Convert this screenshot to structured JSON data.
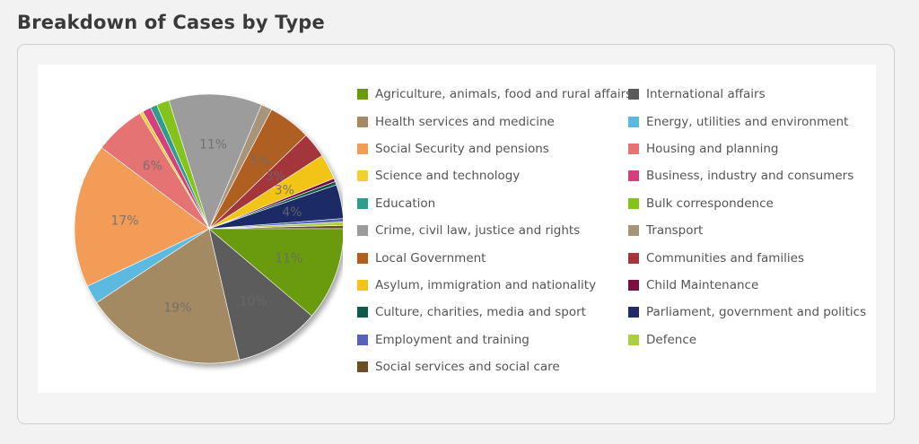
{
  "page": {
    "title": "Breakdown of Cases by Type"
  },
  "chart_data": {
    "type": "pie",
    "start_side": "right",
    "direction": "counterclockwise",
    "slices": [
      {
        "name": "Social services and social care",
        "value": 0.4,
        "color": "#6b4f24",
        "label": ""
      },
      {
        "name": "Defence",
        "value": 0.4,
        "color": "#a8d042",
        "label": ""
      },
      {
        "name": "Employment and training",
        "value": 0.4,
        "color": "#5862b8",
        "label": ""
      },
      {
        "name": "Parliament, government and politics",
        "value": 4,
        "color": "#1f2a66",
        "label": "4%"
      },
      {
        "name": "Culture, charities, media and sport",
        "value": 0.4,
        "color": "#0f5a4a",
        "label": ""
      },
      {
        "name": "Child Maintenance",
        "value": 0.4,
        "color": "#7a1040",
        "label": ""
      },
      {
        "name": "Asylum, immigration and nationality",
        "value": 3,
        "color": "#f2c418",
        "label": "3%"
      },
      {
        "name": "Communities and families",
        "value": 3,
        "color": "#a4363a",
        "label": "3%"
      },
      {
        "name": "Local Government",
        "value": 5,
        "color": "#b05f22",
        "label": "5%"
      },
      {
        "name": "Transport",
        "value": 1.3,
        "color": "#a8947a",
        "label": ""
      },
      {
        "name": "Crime, civil law, justice and rights",
        "value": 11,
        "color": "#9c9c9c",
        "label": "11%"
      },
      {
        "name": "Bulk correspondence",
        "value": 1.5,
        "color": "#86c21e",
        "label": ""
      },
      {
        "name": "Education",
        "value": 0.8,
        "color": "#2e9c8e",
        "label": ""
      },
      {
        "name": "Business, industry and consumers",
        "value": 1,
        "color": "#d53f7b",
        "label": ""
      },
      {
        "name": "Science and technology",
        "value": 0.4,
        "color": "#f1d030",
        "label": ""
      },
      {
        "name": "Housing and planning",
        "value": 6,
        "color": "#e57373",
        "label": "6%"
      },
      {
        "name": "Social Security and pensions",
        "value": 17,
        "color": "#f29c59",
        "label": "17%"
      },
      {
        "name": "Energy, utilities and environment",
        "value": 2.2,
        "color": "#5bb9e0",
        "label": ""
      },
      {
        "name": "Health services and medicine",
        "value": 19,
        "color": "#a48a62",
        "label": "19%"
      },
      {
        "name": "International affairs",
        "value": 10,
        "color": "#5b5b5b",
        "label": "10%"
      },
      {
        "name": "Agriculture, animals, food and rural affairs",
        "value": 11,
        "color": "#6b9a09",
        "label": "11%"
      }
    ],
    "legend": {
      "placement": "right",
      "items": [
        {
          "label": "Agriculture, animals, food and rural affairs",
          "color": "#6b9a09"
        },
        {
          "label": "International affairs",
          "color": "#5b5b5b"
        },
        {
          "label": "Health services and medicine",
          "color": "#a48a62"
        },
        {
          "label": "Energy, utilities and environment",
          "color": "#5bb9e0"
        },
        {
          "label": "Social Security and pensions",
          "color": "#f29c59"
        },
        {
          "label": "Housing and planning",
          "color": "#e57373"
        },
        {
          "label": "Science and technology",
          "color": "#f1d030"
        },
        {
          "label": "Business, industry and consumers",
          "color": "#d53f7b"
        },
        {
          "label": "Education",
          "color": "#2e9c8e"
        },
        {
          "label": "Bulk correspondence",
          "color": "#86c21e"
        },
        {
          "label": "Crime, civil law, justice and rights",
          "color": "#9c9c9c"
        },
        {
          "label": "Transport",
          "color": "#a8947a"
        },
        {
          "label": "Local Government",
          "color": "#b05f22"
        },
        {
          "label": "Communities and families",
          "color": "#a4363a"
        },
        {
          "label": "Asylum, immigration and nationality",
          "color": "#f2c418"
        },
        {
          "label": "Child Maintenance",
          "color": "#7a1040"
        },
        {
          "label": "Culture, charities, media and sport",
          "color": "#0f5a4a"
        },
        {
          "label": "Parliament, government and politics",
          "color": "#1f2a66"
        },
        {
          "label": "Employment and training",
          "color": "#5862b8"
        },
        {
          "label": "Defence",
          "color": "#a8d042"
        },
        {
          "label": "Social services and social care",
          "color": "#6b4f24"
        }
      ]
    }
  }
}
